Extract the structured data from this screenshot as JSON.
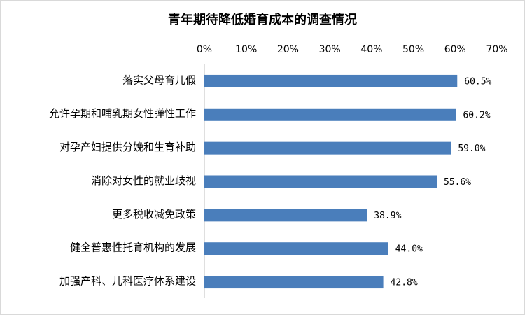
{
  "chart_data": {
    "type": "bar",
    "orientation": "horizontal",
    "title": "青年期待降低婚育成本的调查情况",
    "categories": [
      "落实父母育儿假",
      "允许孕期和哺乳期女性弹性工作",
      "对孕产妇提供分娩和生育补助",
      "消除对女性的就业歧视",
      "更多税收减免政策",
      "健全普惠性托育机构的发展",
      "加强产科、儿科医疗体系建设"
    ],
    "values": [
      60.5,
      60.2,
      59.0,
      55.6,
      38.9,
      44.0,
      42.8
    ],
    "value_labels": [
      "60.5%",
      "60.2%",
      "59.0%",
      "55.6%",
      "38.9%",
      "44.0%",
      "42.8%"
    ],
    "color": "#4a7ebb",
    "xlim": [
      0,
      70
    ],
    "xticks": [
      {
        "value": 0,
        "label": "0%"
      },
      {
        "value": 10,
        "label": "10%"
      },
      {
        "value": 20,
        "label": "20%"
      },
      {
        "value": 30,
        "label": "30%"
      },
      {
        "value": 40,
        "label": "40%"
      },
      {
        "value": 50,
        "label": "50%"
      },
      {
        "value": 60,
        "label": "60%"
      },
      {
        "value": 70,
        "label": "70%"
      }
    ],
    "grid": false
  }
}
